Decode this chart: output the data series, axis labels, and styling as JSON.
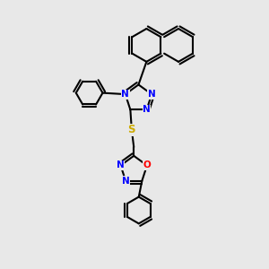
{
  "background_color": "#e8e8e8",
  "bond_color": "#000000",
  "bond_width": 1.5,
  "atom_colors": {
    "N": "#0000ff",
    "S": "#ccaa00",
    "O": "#ff0000",
    "C": "#000000"
  },
  "font_size": 7.5
}
